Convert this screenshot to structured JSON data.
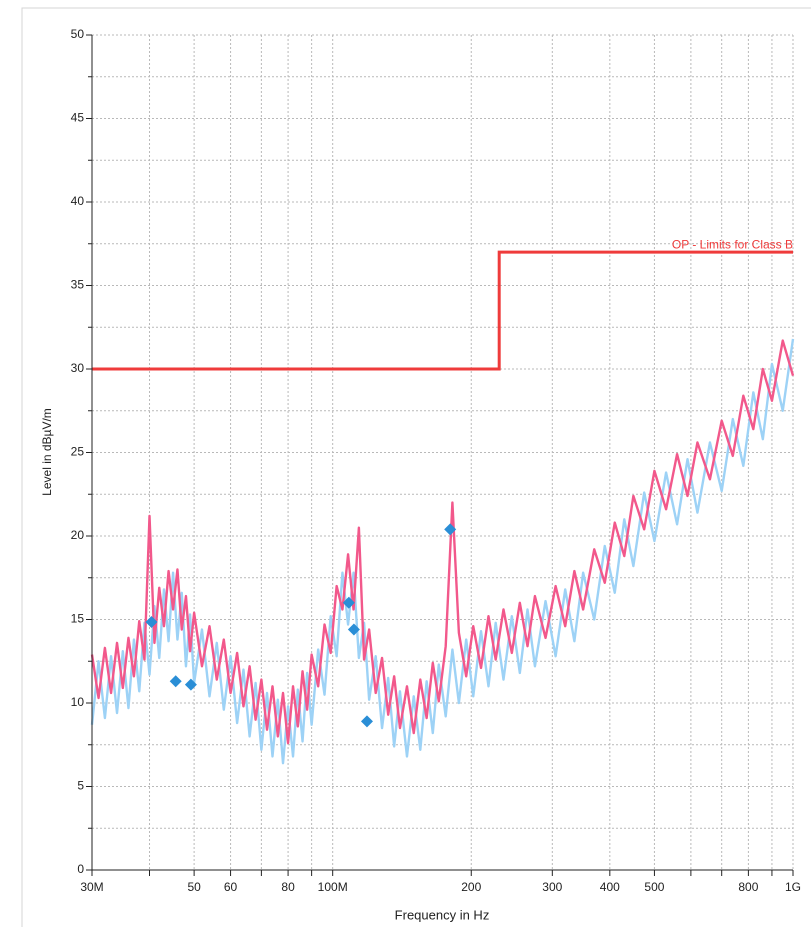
{
  "chart_data": {
    "type": "line",
    "xlabel": "Frequency in Hz",
    "ylabel": "Level in dBµV/m",
    "xscale": "log",
    "grid": true,
    "xlim": [
      30,
      1000
    ],
    "ylim": [
      0,
      50
    ],
    "xticks": [
      {
        "value": 30,
        "label": "30M"
      },
      50,
      60,
      80,
      {
        "value": 100,
        "label": "100M"
      },
      200,
      300,
      400,
      500,
      800,
      {
        "value": 1000,
        "label": "1G"
      }
    ],
    "xminor": [
      40,
      70,
      90,
      600,
      700,
      900
    ],
    "yticks": [
      0,
      5,
      10,
      15,
      20,
      25,
      30,
      35,
      40,
      45,
      50
    ],
    "yminor": [
      2.5,
      7.5,
      12.5,
      17.5,
      22.5,
      27.5,
      32.5,
      37.5,
      42.5,
      47.5
    ],
    "x": [
      30,
      31,
      32,
      33,
      34,
      35,
      36,
      37,
      38,
      39,
      40,
      41,
      42,
      43,
      44,
      45,
      46,
      47,
      48,
      49,
      50,
      52,
      54,
      56,
      58,
      60,
      62,
      64,
      66,
      68,
      70,
      72,
      74,
      76,
      78,
      80,
      82,
      84,
      86,
      88,
      90,
      93,
      96,
      99,
      102,
      105,
      108,
      111,
      114,
      117,
      120,
      124,
      128,
      132,
      136,
      140,
      145,
      150,
      155,
      160,
      165,
      170,
      176,
      182,
      188,
      195,
      202,
      210,
      218,
      226,
      235,
      245,
      255,
      265,
      275,
      290,
      305,
      320,
      335,
      350,
      370,
      390,
      410,
      430,
      450,
      475,
      500,
      530,
      560,
      590,
      620,
      660,
      700,
      740,
      780,
      820,
      860,
      900,
      950,
      1000
    ],
    "series": [
      {
        "type": "line",
        "color": "#9dd2f6",
        "values": [
          8.7,
          12.5,
          9.1,
          12.8,
          9.4,
          13.1,
          9.7,
          13.8,
          10.7,
          14.8,
          11.7,
          15.8,
          12.7,
          16.8,
          13.7,
          17.8,
          13.8,
          16.6,
          12.2,
          15.3,
          11.2,
          14.4,
          10.4,
          13.6,
          9.6,
          12.8,
          8.8,
          12.0,
          8.0,
          11.2,
          7.2,
          10.6,
          6.8,
          10.2,
          6.4,
          9.8,
          6.8,
          10.8,
          7.7,
          11.8,
          8.7,
          13.2,
          10.5,
          15.2,
          12.8,
          17.8,
          14.7,
          17.8,
          12.7,
          14.8,
          10.2,
          12.8,
          8.5,
          11.5,
          7.4,
          10.7,
          6.8,
          10.4,
          7.2,
          11.3,
          8.2,
          12.3,
          9.2,
          13.2,
          10.0,
          13.8,
          10.4,
          14.3,
          11.0,
          14.8,
          11.4,
          15.2,
          11.8,
          15.6,
          12.2,
          16.1,
          12.8,
          16.8,
          13.7,
          17.8,
          15.0,
          19.4,
          16.6,
          21.0,
          18.2,
          22.6,
          19.7,
          23.8,
          20.7,
          24.6,
          21.4,
          25.6,
          22.7,
          27.0,
          24.2,
          28.6,
          25.8,
          30.3,
          27.5,
          31.8
        ]
      },
      {
        "type": "line",
        "color": "#f2588b",
        "values": [
          12.9,
          10.3,
          13.3,
          10.6,
          13.6,
          10.9,
          13.9,
          11.6,
          14.9,
          12.6,
          21.2,
          13.6,
          16.9,
          14.6,
          17.9,
          15.6,
          18.0,
          14.4,
          16.4,
          13.1,
          15.4,
          12.2,
          14.6,
          11.4,
          13.8,
          10.6,
          13.0,
          9.8,
          12.2,
          9.0,
          11.4,
          8.4,
          11.0,
          8.0,
          10.6,
          7.6,
          11.0,
          8.6,
          11.9,
          9.6,
          12.9,
          11.0,
          14.7,
          13.0,
          17.0,
          15.6,
          18.9,
          15.6,
          20.5,
          12.6,
          14.4,
          10.6,
          12.7,
          9.3,
          11.6,
          8.5,
          11.0,
          8.2,
          11.4,
          9.1,
          12.4,
          10.1,
          13.4,
          22.0,
          14.2,
          11.6,
          14.6,
          12.1,
          15.2,
          12.6,
          15.6,
          13.0,
          16.0,
          13.4,
          16.4,
          13.9,
          17.0,
          14.6,
          17.9,
          15.6,
          19.2,
          17.2,
          20.8,
          18.8,
          22.4,
          20.4,
          23.9,
          21.6,
          24.9,
          22.4,
          25.6,
          23.4,
          26.9,
          24.8,
          28.4,
          26.4,
          30.0,
          28.1,
          31.7,
          29.6
        ]
      },
      {
        "type": "step",
        "name": "OP - Limits for Class B",
        "color": "#ef3b3b",
        "x": [
          30,
          230,
          230,
          1000
        ],
        "values": [
          30,
          30,
          37,
          37
        ]
      },
      {
        "type": "scatter",
        "marker": "diamond",
        "color": "#2a8ed6",
        "x": [
          40.4,
          45.6,
          49.2,
          108.4,
          111.2,
          118.7,
          180
        ],
        "values": [
          14.85,
          11.3,
          11.1,
          16.0,
          14.4,
          8.9,
          20.4
        ]
      }
    ]
  }
}
